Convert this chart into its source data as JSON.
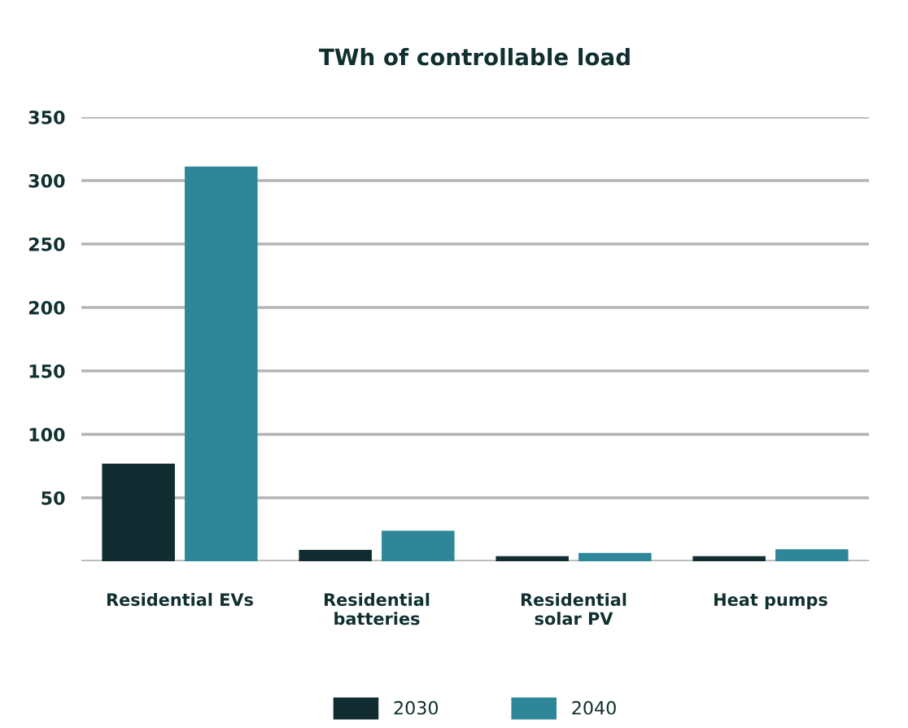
{
  "chart_data": {
    "type": "bar",
    "title": "TWh of controllable load",
    "categories": [
      "Residential EVs",
      "Residential\nbatteries",
      "Residential\nsolar PV",
      "Heat pumps"
    ],
    "series": [
      {
        "name": "2030",
        "color": "#122d31",
        "values": [
          77,
          9,
          4,
          4
        ]
      },
      {
        "name": "2040",
        "color": "#2e8799",
        "values": [
          311,
          24,
          6.5,
          9.5
        ]
      }
    ],
    "ylim": [
      0,
      350
    ],
    "yticks": [
      {
        "value": 0,
        "label": null
      },
      50,
      100,
      150,
      200,
      250,
      300,
      350
    ],
    "grid": "y",
    "legend": "bottom"
  }
}
